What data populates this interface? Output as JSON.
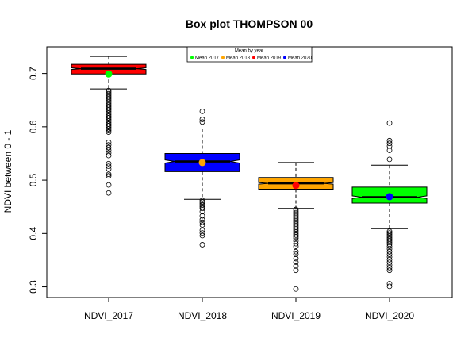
{
  "chart_data": {
    "type": "box",
    "title": "Box plot THOMPSON 00",
    "xlabel": "",
    "ylabel": "NDVI between 0 - 1",
    "ylim": [
      0.28,
      0.75
    ],
    "yticks": [
      0.3,
      0.4,
      0.5,
      0.6,
      0.7
    ],
    "ytick_labels": [
      "0.3",
      "0.4",
      "0.5",
      "0.6",
      "0.7"
    ],
    "categories": [
      "NDVI_2017",
      "NDVI_2018",
      "NDVI_2019",
      "NDVI_2020"
    ],
    "legend": {
      "title": "Mean by year",
      "position": "top-center",
      "entries": [
        {
          "label": "Mean 2017",
          "color": "#00ff00"
        },
        {
          "label": "Mean 2018",
          "color": "#ffa500"
        },
        {
          "label": "Mean 2019",
          "color": "#ff0000"
        },
        {
          "label": "Mean 2020",
          "color": "#0000ff"
        }
      ]
    },
    "boxes": [
      {
        "name": "NDVI_2017",
        "fill": "#ff0000",
        "whisker_low": 0.671,
        "q1": 0.699,
        "median": 0.709,
        "q3": 0.717,
        "whisker_high": 0.732,
        "notch": 0.0015,
        "mean": 0.699,
        "mean_color": "#00ff00",
        "outliers": [
          0.668,
          0.665,
          0.662,
          0.659,
          0.656,
          0.653,
          0.65,
          0.647,
          0.644,
          0.641,
          0.638,
          0.635,
          0.632,
          0.629,
          0.626,
          0.623,
          0.62,
          0.617,
          0.614,
          0.611,
          0.608,
          0.605,
          0.602,
          0.599,
          0.596,
          0.593,
          0.59,
          0.571,
          0.566,
          0.561,
          0.556,
          0.551,
          0.546,
          0.531,
          0.526,
          0.521,
          0.511,
          0.508,
          0.491,
          0.476
        ]
      },
      {
        "name": "NDVI_2018",
        "fill": "#0000ff",
        "whisker_low": 0.464,
        "q1": 0.516,
        "median": 0.535,
        "q3": 0.55,
        "whisker_high": 0.596,
        "notch": 0.003,
        "mean": 0.533,
        "mean_color": "#ffa500",
        "outliers": [
          0.629,
          0.614,
          0.609,
          0.462,
          0.459,
          0.456,
          0.453,
          0.45,
          0.447,
          0.441,
          0.433,
          0.426,
          0.421,
          0.416,
          0.406,
          0.401,
          0.396,
          0.379
        ]
      },
      {
        "name": "NDVI_2019",
        "fill": "#ffa500",
        "whisker_low": 0.447,
        "q1": 0.483,
        "median": 0.494,
        "q3": 0.505,
        "whisker_high": 0.533,
        "notch": 0.0015,
        "mean": 0.49,
        "mean_color": "#ff0000",
        "outliers": [
          0.445,
          0.442,
          0.439,
          0.436,
          0.433,
          0.43,
          0.427,
          0.424,
          0.421,
          0.418,
          0.415,
          0.412,
          0.409,
          0.406,
          0.403,
          0.4,
          0.397,
          0.394,
          0.391,
          0.386,
          0.381,
          0.376,
          0.366,
          0.361,
          0.353,
          0.346,
          0.339,
          0.331,
          0.296
        ]
      },
      {
        "name": "NDVI_2020",
        "fill": "#00ff00",
        "whisker_low": 0.409,
        "q1": 0.457,
        "median": 0.468,
        "q3": 0.487,
        "whisker_high": 0.528,
        "notch": 0.0025,
        "mean": 0.469,
        "mean_color": "#0000ff",
        "outliers": [
          0.607,
          0.574,
          0.569,
          0.564,
          0.556,
          0.539,
          0.404,
          0.401,
          0.398,
          0.395,
          0.392,
          0.389,
          0.386,
          0.383,
          0.38,
          0.376,
          0.371,
          0.366,
          0.361,
          0.356,
          0.351,
          0.346,
          0.341,
          0.336,
          0.331,
          0.306,
          0.301
        ]
      }
    ]
  }
}
